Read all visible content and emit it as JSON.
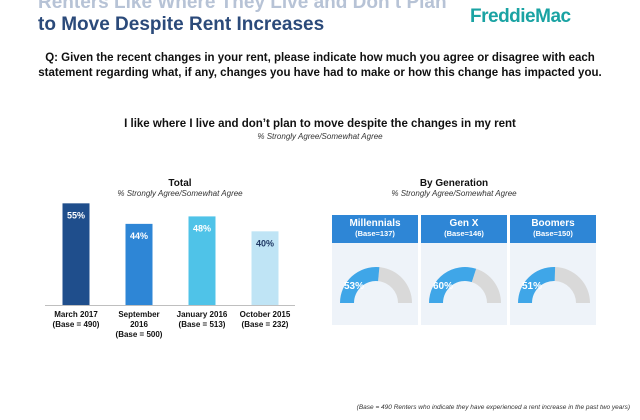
{
  "header": {
    "title_line1": "Renters Like Where They Live and Don’t Plan",
    "title_line2": "to Move Despite Rent Increases",
    "logo_text": "FreddieMac"
  },
  "question": "Q: Given the recent changes in your rent, please indicate how much you agree or disagree with each statement regarding what, if any, changes you have had to make or how this change has impacted you.",
  "chart_title": "I like where I live and don’t plan to move despite the changes in my rent",
  "chart_subtitle": "% Strongly Agree/Somewhat Agree",
  "colors": {
    "bar1": "#1f4e8c",
    "bar2": "#2e86d6",
    "bar3": "#4fc3e8",
    "bar4": "#bfe4f5",
    "gauge_fill": "#3fa6e8",
    "gauge_rest": "#d9d9d9",
    "gen_header": "#2e86d6"
  },
  "chart_data": [
    {
      "type": "bar",
      "title": "Total",
      "subtitle": "% Strongly Agree/Somewhat Agree",
      "categories": [
        {
          "line1": "March 2017",
          "line2": "(Base = 490)",
          "line3": ""
        },
        {
          "line1": "September",
          "line2": "2016",
          "line3": "(Base = 500)"
        },
        {
          "line1": "January 2016",
          "line2": "(Base = 513)",
          "line3": ""
        },
        {
          "line1": "October 2015",
          "line2": "(Base = 232)",
          "line3": ""
        }
      ],
      "values": [
        55,
        44,
        48,
        40
      ],
      "value_labels": [
        "55%",
        "44%",
        "48%",
        "40%"
      ],
      "ylim": [
        0,
        60
      ]
    },
    {
      "type": "gauge",
      "title": "By Generation",
      "subtitle": "% Strongly Agree/Somewhat Agree",
      "groups": [
        {
          "name": "Millennials",
          "base": "(Base=137)",
          "value": 53,
          "label": "53%"
        },
        {
          "name": "Gen X",
          "base": "(Base=146)",
          "value": 60,
          "label": "60%"
        },
        {
          "name": "Boomers",
          "base": "(Base=150)",
          "value": 51,
          "label": "51%"
        }
      ]
    }
  ],
  "footnote": "(Base = 490 Renters who indicate they have experienced a rent increase in the past two years)"
}
